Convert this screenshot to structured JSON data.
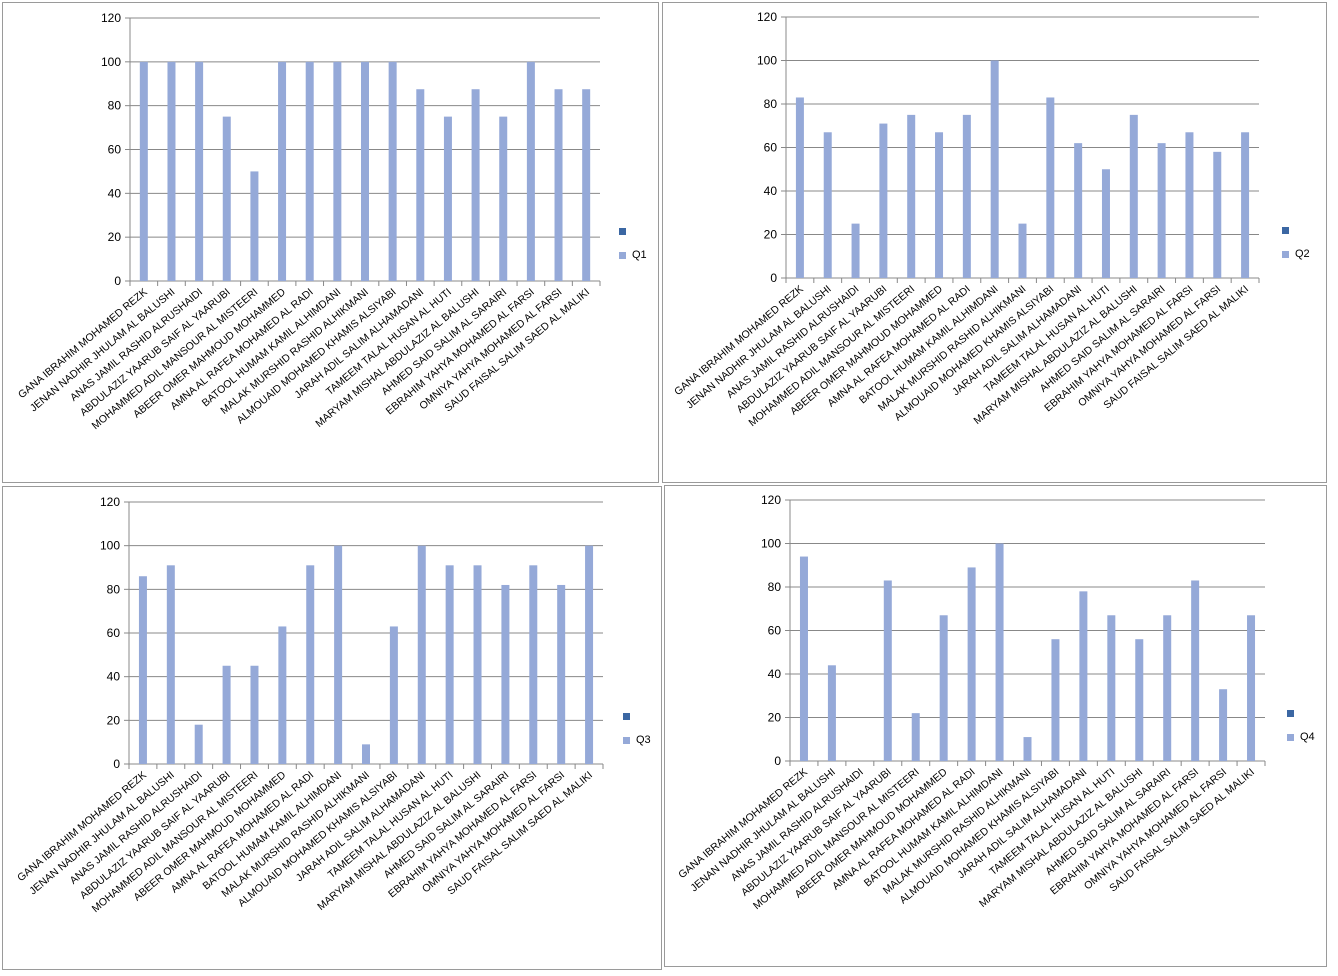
{
  "styles": {
    "bar_color": "#95a9d8",
    "marker_color": "#3b67a3",
    "grid_color": "#888888",
    "axis_color": "#888888"
  },
  "charts": [
    {
      "chart_id": "q1",
      "chart_data": {
        "type": "bar",
        "ylim": [
          0,
          120
        ],
        "yticks": [
          0,
          20,
          40,
          60,
          80,
          100,
          120
        ],
        "grid": true,
        "legend": "right",
        "categories": [
          "GANA IBRAHIM MOHAMED REZK",
          "JENAN NADHIR JHULAM AL BALUSHI",
          "ANAS JAMIL RASHID ALRUSHAIDI",
          "ABDULAZIZ YAARUB SAIF AL YAARUBI",
          "MOHAMMED ADIL MANSOUR AL MISTEERI",
          "ABEER OMER MAHMOUD MOHAMMED",
          "AMNA AL RAFEA MOHAMED AL RADI",
          "BATOOL HUMAM KAMIL ALHIMDANI",
          "MALAK MURSHID RASHID ALHIKMANI",
          "ALMOUAID MOHAMED KHAMIS ALSIYABI",
          "JARAH ADIL SALIM ALHAMADANI",
          "TAMEEM TALAL HUSAN AL HUTI",
          "MARYAM MISHAL ABDULAZIZ AL BALUSHI",
          "AHMED SAID SALIM AL SARAIRI",
          "EBRAHIM YAHYA MOHAMED AL FARSI",
          "OMNIYA YAHYA MOHAMED AL FARSI",
          "SAUD FAISAL SALIM SAED AL MALIKI"
        ],
        "series": [
          {
            "name": "Q1",
            "values": [
              100,
              100,
              100,
              75,
              50,
              100,
              100,
              100,
              100,
              100,
              87.5,
              75,
              87.5,
              75,
              100,
              87.5,
              87.5
            ]
          }
        ]
      }
    },
    {
      "chart_id": "q2",
      "chart_data": {
        "type": "bar",
        "ylim": [
          0,
          120
        ],
        "yticks": [
          0,
          20,
          40,
          60,
          80,
          100,
          120
        ],
        "grid": true,
        "legend": "right",
        "categories": [
          "GANA IBRAHIM MOHAMED REZK",
          "JENAN NADHIR JHULAM AL BALUSHI",
          "ANAS JAMIL RASHID ALRUSHAIDI",
          "ABDULAZIZ YAARUB SAIF AL YAARUBI",
          "MOHAMMED ADIL MANSOUR AL MISTEERI",
          "ABEER OMER MAHMOUD MOHAMMED",
          "AMNA AL RAFEA MOHAMED AL RADI",
          "BATOOL HUMAM KAMIL ALHIMDANI",
          "MALAK MURSHID RASHID ALHIKMANI",
          "ALMOUAID MOHAMED KHAMIS ALSIYABI",
          "JARAH ADIL SALIM ALHAMADANI",
          "TAMEEM TALAL HUSAN AL HUTI",
          "MARYAM MISHAL ABDULAZIZ AL BALUSHI",
          "AHMED SAID SALIM AL SARAIRI",
          "EBRAHIM YAHYA MOHAMED AL FARSI",
          "OMNIYA YAHYA MOHAMED AL FARSI",
          "SAUD FAISAL SALIM SAED AL MALIKI"
        ],
        "series": [
          {
            "name": "Q2",
            "values": [
              83,
              67,
              25,
              71,
              75,
              67,
              75,
              100,
              25,
              83,
              62,
              50,
              75,
              62,
              67,
              58,
              67
            ]
          }
        ]
      }
    },
    {
      "chart_id": "q3",
      "chart_data": {
        "type": "bar",
        "ylim": [
          0,
          120
        ],
        "yticks": [
          0,
          20,
          40,
          60,
          80,
          100,
          120
        ],
        "grid": true,
        "legend": "right",
        "categories": [
          "GANA IBRAHIM MOHAMED REZK",
          "JENAN NADHIR JHULAM AL BALUSHI",
          "ANAS JAMIL RASHID ALRUSHAIDI",
          "ABDULAZIZ YAARUB SAIF AL YAARUBI",
          "MOHAMMED ADIL MANSOUR AL MISTEERI",
          "ABEER OMER MAHMOUD MOHAMMED",
          "AMNA AL RAFEA MOHAMED AL RADI",
          "BATOOL HUMAM KAMIL ALHIMDANI",
          "MALAK MURSHID RASHID ALHIKMANI",
          "ALMOUAID MOHAMED KHAMIS ALSIYABI",
          "JARAH ADIL SALIM ALHAMADANI",
          "TAMEEM TALAL HUSAN AL HUTI",
          "MARYAM MISHAL ABDULAZIZ AL BALUSHI",
          "AHMED SAID SALIM AL SARAIRI",
          "EBRAHIM YAHYA MOHAMED AL FARSI",
          "OMNIYA YAHYA MOHAMED AL FARSI",
          "SAUD FAISAL SALIM SAED AL MALIKI"
        ],
        "series": [
          {
            "name": "Q3",
            "values": [
              86,
              91,
              18,
              45,
              45,
              63,
              91,
              100,
              9,
              63,
              100,
              91,
              91,
              82,
              91,
              82,
              100
            ]
          }
        ]
      }
    },
    {
      "chart_id": "q4",
      "chart_data": {
        "type": "bar",
        "ylim": [
          0,
          120
        ],
        "yticks": [
          0,
          20,
          40,
          60,
          80,
          100,
          120
        ],
        "grid": true,
        "legend": "right",
        "categories": [
          "GANA IBRAHIM MOHAMED REZK",
          "JENAN NADHIR JHULAM AL BALUSHI",
          "ANAS JAMIL RASHID ALRUSHAIDI",
          "ABDULAZIZ YAARUB SAIF AL YAARUBI",
          "MOHAMMED ADIL MANSOUR AL MISTEERI",
          "ABEER OMER MAHMOUD MOHAMMED",
          "AMNA AL RAFEA MOHAMED AL RADI",
          "BATOOL HUMAM KAMIL ALHIMDANI",
          "MALAK MURSHID RASHID ALHIKMANI",
          "ALMOUAID MOHAMED KHAMIS ALSIYABI",
          "JARAH ADIL SALIM ALHAMADANI",
          "TAMEEM TALAL HUSAN AL HUTI",
          "MARYAM MISHAL ABDULAZIZ AL BALUSHI",
          "AHMED SAID SALIM AL SARAIRI",
          "EBRAHIM YAHYA MOHAMED AL FARSI",
          "OMNIYA YAHYA MOHAMED AL FARSI",
          "SAUD FAISAL SALIM SAED AL MALIKI"
        ],
        "series": [
          {
            "name": "Q4",
            "values": [
              94,
              44,
              0,
              83,
              22,
              67,
              89,
              100,
              11,
              56,
              78,
              67,
              56,
              67,
              83,
              33,
              67
            ]
          }
        ]
      }
    }
  ]
}
